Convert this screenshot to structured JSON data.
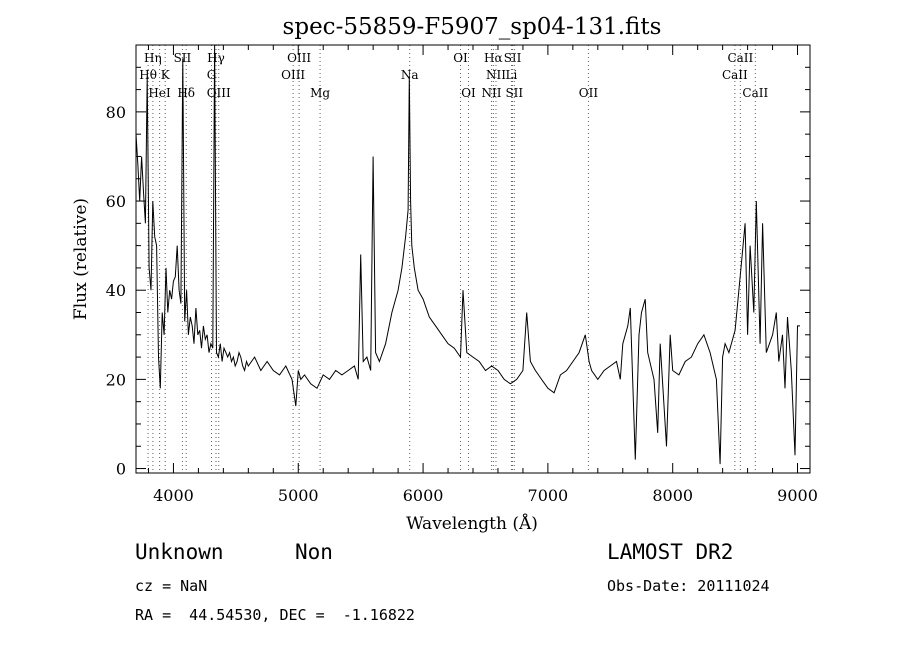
{
  "chart_data": {
    "type": "line",
    "title": "spec-55859-F5907_sp04-131.fits",
    "xlabel": "Wavelength (Å)",
    "ylabel": "Flux (relative)",
    "xlim": [
      3700,
      9100
    ],
    "ylim": [
      -1,
      95
    ],
    "xticks": [
      4000,
      5000,
      6000,
      7000,
      8000,
      9000
    ],
    "yticks": [
      0,
      20,
      40,
      60,
      80
    ],
    "grid": false,
    "line_color": "#000000",
    "marker_color": "#cc3333",
    "line_markers": [
      {
        "label": "Hη",
        "wave": 3835,
        "row": 0
      },
      {
        "label": "Hθ",
        "wave": 3797,
        "row": 1
      },
      {
        "label": "HeI",
        "wave": 3889,
        "row": 2
      },
      {
        "label": "K",
        "wave": 3934,
        "row": 1
      },
      {
        "label": "SII",
        "wave": 4072,
        "row": 0
      },
      {
        "label": "Hδ",
        "wave": 4102,
        "row": 2
      },
      {
        "label": "Hγ",
        "wave": 4341,
        "row": 0
      },
      {
        "label": "G",
        "wave": 4305,
        "row": 1
      },
      {
        "label": "OIII",
        "wave": 4363,
        "row": 2
      },
      {
        "label": "OIII",
        "wave": 5007,
        "row": 0
      },
      {
        "label": "OIII",
        "wave": 4959,
        "row": 1
      },
      {
        "label": "Mg",
        "wave": 5175,
        "row": 2
      },
      {
        "label": "Na",
        "wave": 5893,
        "row": 1
      },
      {
        "label": "OI",
        "wave": 6300,
        "row": 0
      },
      {
        "label": "OI",
        "wave": 6364,
        "row": 2
      },
      {
        "label": "Hα",
        "wave": 6563,
        "row": 0
      },
      {
        "label": "SII",
        "wave": 6717,
        "row": 0
      },
      {
        "label": "NII",
        "wave": 6584,
        "row": 1
      },
      {
        "label": "Li",
        "wave": 6708,
        "row": 1
      },
      {
        "label": "NII",
        "wave": 6548,
        "row": 2
      },
      {
        "label": "SII",
        "wave": 6731,
        "row": 2
      },
      {
        "label": "OII",
        "wave": 7325,
        "row": 2
      },
      {
        "label": "CaII",
        "wave": 8542,
        "row": 0
      },
      {
        "label": "CaII",
        "wave": 8498,
        "row": 1
      },
      {
        "label": "CaII",
        "wave": 8662,
        "row": 2
      }
    ],
    "series": [
      {
        "x": [
          3700,
          3715,
          3730,
          3745,
          3760,
          3775,
          3790,
          3805,
          3820,
          3835,
          3850,
          3865,
          3880,
          3895,
          3910,
          3925,
          3940,
          3955,
          3970,
          3985,
          4000,
          4015,
          4030,
          4045,
          4060,
          4075,
          4090,
          4105,
          4120,
          4135,
          4150,
          4165,
          4180,
          4195,
          4210,
          4225,
          4240,
          4255,
          4270,
          4285,
          4300,
          4315,
          4330,
          4345,
          4360,
          4375,
          4390,
          4405,
          4420,
          4435,
          4450,
          4465,
          4480,
          4495,
          4510,
          4525,
          4540,
          4555,
          4570,
          4585,
          4600,
          4650,
          4700,
          4750,
          4800,
          4850,
          4900,
          4950,
          4980,
          5000,
          5020,
          5050,
          5100,
          5150,
          5200,
          5250,
          5300,
          5350,
          5400,
          5450,
          5480,
          5500,
          5520,
          5550,
          5580,
          5600,
          5620,
          5650,
          5700,
          5750,
          5800,
          5830,
          5860,
          5880,
          5890,
          5900,
          5910,
          5930,
          5960,
          6000,
          6050,
          6100,
          6150,
          6200,
          6250,
          6300,
          6320,
          6350,
          6400,
          6450,
          6500,
          6550,
          6600,
          6650,
          6700,
          6750,
          6800,
          6830,
          6860,
          6900,
          6950,
          7000,
          7050,
          7100,
          7150,
          7200,
          7250,
          7300,
          7330,
          7350,
          7400,
          7450,
          7500,
          7550,
          7580,
          7600,
          7640,
          7660,
          7700,
          7730,
          7750,
          7780,
          7800,
          7850,
          7880,
          7900,
          7950,
          7980,
          8000,
          8050,
          8100,
          8150,
          8200,
          8250,
          8300,
          8350,
          8380,
          8400,
          8420,
          8450,
          8500,
          8550,
          8580,
          8600,
          8620,
          8650,
          8670,
          8700,
          8720,
          8750,
          8800,
          8830,
          8850,
          8880,
          8900,
          8920,
          8950,
          8980,
          9000,
          9020
        ],
        "y": [
          75,
          68,
          60,
          70,
          62,
          55,
          88,
          45,
          40,
          60,
          52,
          50,
          25,
          18,
          35,
          30,
          45,
          35,
          40,
          38,
          42,
          43,
          50,
          40,
          37,
          92,
          33,
          40,
          30,
          34,
          32,
          28,
          36,
          30,
          31,
          27,
          32,
          29,
          30,
          26,
          28,
          27,
          95,
          26,
          25,
          28,
          24,
          27,
          26,
          25,
          26,
          24,
          25,
          23,
          24,
          26,
          25,
          23,
          22,
          24,
          23,
          25,
          22,
          24,
          22,
          21,
          23,
          20,
          14,
          22,
          20,
          21,
          19,
          18,
          21,
          20,
          22,
          21,
          22,
          23,
          20,
          48,
          24,
          25,
          22,
          70,
          26,
          24,
          28,
          35,
          40,
          45,
          52,
          58,
          88,
          60,
          50,
          45,
          40,
          38,
          34,
          32,
          30,
          28,
          27,
          25,
          40,
          26,
          25,
          24,
          22,
          23,
          22,
          20,
          19,
          20,
          22,
          35,
          24,
          22,
          20,
          18,
          17,
          21,
          22,
          24,
          26,
          30,
          24,
          22,
          20,
          22,
          23,
          24,
          20,
          28,
          32,
          36,
          2,
          30,
          35,
          38,
          26,
          20,
          8,
          28,
          5,
          30,
          22,
          21,
          24,
          25,
          28,
          30,
          26,
          20,
          1,
          25,
          28,
          26,
          31,
          46,
          55,
          30,
          50,
          35,
          60,
          28,
          55,
          26,
          30,
          35,
          24,
          30,
          18,
          34,
          22,
          3,
          32,
          32
        ]
      }
    ]
  },
  "info": {
    "object_class": "Unknown",
    "subclass": "Non",
    "redshift": "cz = NaN",
    "coords": "RA =  44.54530, DEC =  -1.16822",
    "survey": "LAMOST DR2",
    "obs_date": "Obs-Date: 20111024"
  }
}
